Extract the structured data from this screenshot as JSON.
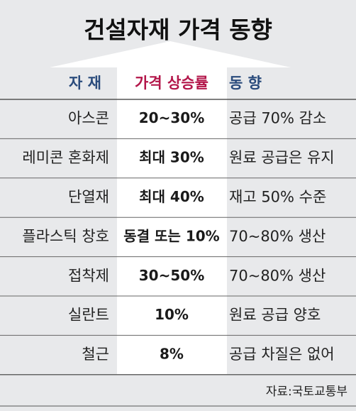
{
  "header": {
    "title": "건설자재 가격 동향"
  },
  "table": {
    "columns": [
      "자 재",
      "가격 상승률",
      "동 향"
    ],
    "rows": [
      [
        "아스콘",
        "20~30%",
        "공급 70% 감소"
      ],
      [
        "레미콘 혼화제",
        "최대 30%",
        "원료 공급은 유지"
      ],
      [
        "단열재",
        "최대 40%",
        "재고 50% 수준"
      ],
      [
        "플라스틱 창호",
        "동결 또는 10%",
        "70~80% 생산"
      ],
      [
        "접착제",
        "30~50%",
        "70~80% 생산"
      ],
      [
        "실란트",
        "10%",
        "원료 공급 양호"
      ],
      [
        "철근",
        "8%",
        "공급 차질은 없어"
      ]
    ]
  },
  "source": "자료:국토교통부"
}
